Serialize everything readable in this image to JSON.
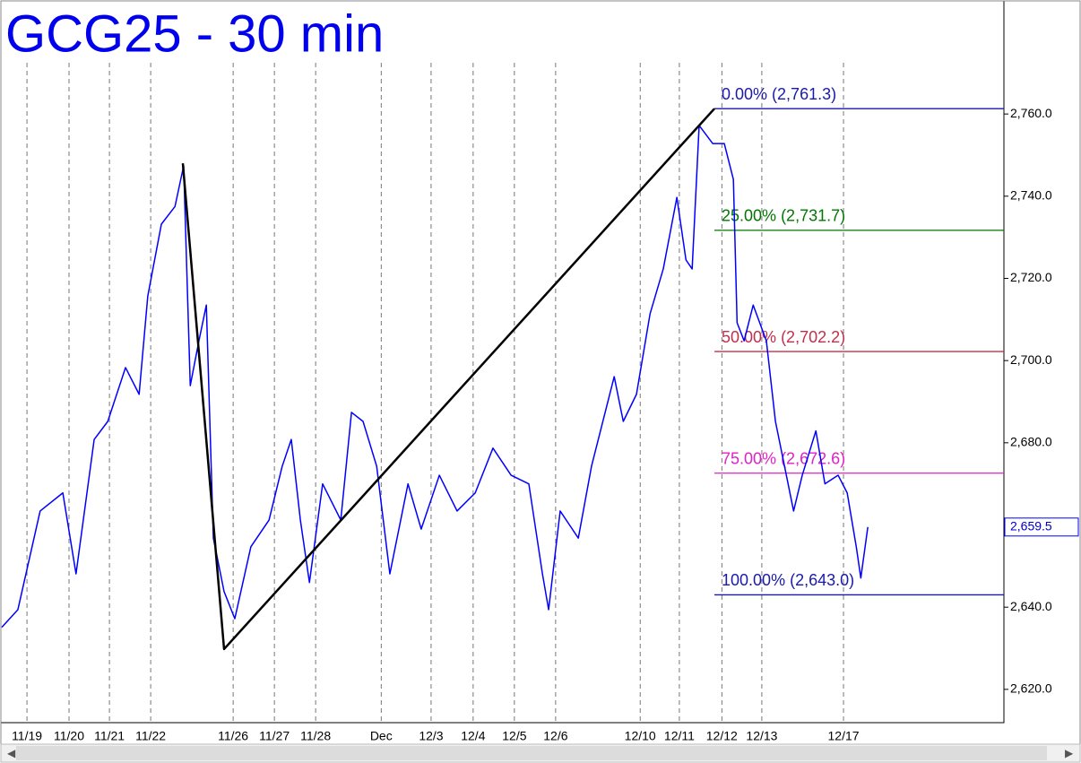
{
  "chart_data": {
    "type": "line",
    "title": "GCG25 - 30 min",
    "xlim": [
      0,
      24.3
    ],
    "xticks": [
      {
        "value": 0.61,
        "label": "11/19"
      },
      {
        "value": 1.63,
        "label": "11/20"
      },
      {
        "value": 2.61,
        "label": "11/21"
      },
      {
        "value": 3.61,
        "label": "11/22"
      },
      {
        "value": 5.61,
        "label": "11/26"
      },
      {
        "value": 6.61,
        "label": "11/27"
      },
      {
        "value": 7.61,
        "label": "11/28"
      },
      {
        "value": 9.2,
        "label": "Dec"
      },
      {
        "value": 10.41,
        "label": "12/3"
      },
      {
        "value": 11.43,
        "label": "12/4"
      },
      {
        "value": 12.43,
        "label": "12/5"
      },
      {
        "value": 13.43,
        "label": "12/6"
      },
      {
        "value": 15.48,
        "label": "12/10"
      },
      {
        "value": 16.43,
        "label": "12/11"
      },
      {
        "value": 17.46,
        "label": "12/12"
      },
      {
        "value": 18.43,
        "label": "12/13"
      },
      {
        "value": 20.41,
        "label": "12/17"
      }
    ],
    "ylim": [
      2611.9,
      2787.3
    ],
    "yticks": [
      {
        "value": 2620,
        "label": "2,620.0"
      },
      {
        "value": 2640,
        "label": "2,640.0"
      },
      {
        "value": 2660,
        "label": "2,660.0"
      },
      {
        "value": 2680,
        "label": "2,680.0"
      },
      {
        "value": 2700,
        "label": "2,700.0"
      },
      {
        "value": 2720,
        "label": "2,720.0"
      },
      {
        "value": 2740,
        "label": "2,740.0"
      },
      {
        "value": 2760,
        "label": "2,760.0"
      }
    ],
    "series": [
      {
        "color": "#0000ff",
        "x": [
          0,
          0.39,
          0.93,
          1.48,
          1.8,
          2.24,
          2.57,
          3,
          3.33,
          3.54,
          3.87,
          4.2,
          4.41,
          4.57,
          4.78,
          4.96,
          5.13,
          5.39,
          5.65,
          6.04,
          6.48,
          6.8,
          7.02,
          7.24,
          7.46,
          7.78,
          8.22,
          8.48,
          8.76,
          9.09,
          9.41,
          9.85,
          10.17,
          10.61,
          11.04,
          11.48,
          11.91,
          12.35,
          12.78,
          13.11,
          13.26,
          13.54,
          13.98,
          14.3,
          14.85,
          15.07,
          15.39,
          15.72,
          16.04,
          16.37,
          16.59,
          16.74,
          16.91,
          17.24,
          17.52,
          17.74,
          17.83,
          18,
          18.22,
          18.54,
          18.76,
          19.2,
          19.41,
          19.74,
          19.96,
          20.28,
          20.5,
          20.72,
          20.83,
          21
        ],
        "values": [
          2635.1,
          2639.4,
          2663.4,
          2667.8,
          2648.1,
          2680.8,
          2685.2,
          2698.3,
          2691.8,
          2715.7,
          2733.2,
          2737.5,
          2747.4,
          2693.9,
          2704.8,
          2713.5,
          2656.8,
          2643.8,
          2637.2,
          2654.7,
          2661.2,
          2674.3,
          2680.8,
          2661.2,
          2646.0,
          2670.0,
          2661.2,
          2687.4,
          2685.2,
          2674.3,
          2648.1,
          2670.0,
          2659.0,
          2672.1,
          2663.4,
          2667.8,
          2678.7,
          2672.1,
          2670.0,
          2648.1,
          2639.4,
          2663.4,
          2656.8,
          2674.3,
          2696.1,
          2685.2,
          2691.8,
          2711.4,
          2722.3,
          2739.7,
          2724.5,
          2722.3,
          2757.2,
          2752.8,
          2752.8,
          2744.1,
          2709.2,
          2704.8,
          2713.5,
          2704.8,
          2685.2,
          2663.4,
          2672.1,
          2682.9,
          2670.0,
          2672.1,
          2667.8,
          2654.7,
          2647.1,
          2659.5
        ]
      },
      {
        "color": "#000000",
        "x": [
          4.39,
          5.39,
          17.28
        ],
        "values": [
          2748.0,
          2629.8,
          2761.3
        ]
      }
    ],
    "fib_levels": [
      {
        "label": "0.00% (2,761.3)",
        "value": 2761.3,
        "color": "#1a1aaa"
      },
      {
        "label": "25.00% (2,731.7)",
        "value": 2731.7,
        "color": "#007700"
      },
      {
        "label": "50.00% (2,702.2)",
        "value": 2702.2,
        "color": "#c0304a"
      },
      {
        "label": "75.00% (2,672.6)",
        "value": 2672.6,
        "color": "#e020c8"
      },
      {
        "label": "100.00% (2,643.0)",
        "value": 2643.0,
        "color": "#1a1aaa"
      }
    ],
    "fib_start": 17.28,
    "last_price": {
      "value": 2659.5,
      "label": "2,659.5"
    }
  }
}
